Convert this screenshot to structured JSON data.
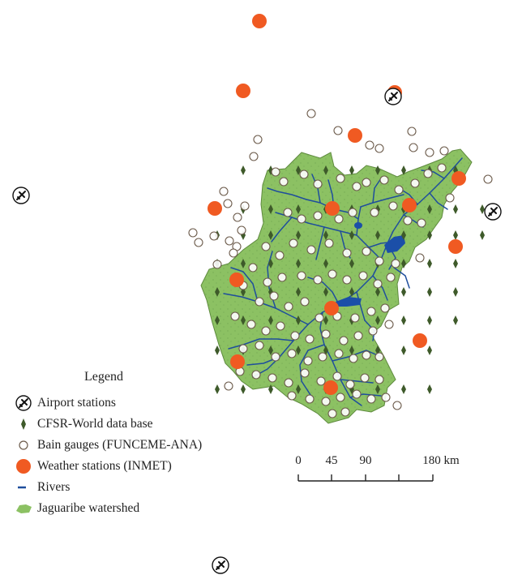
{
  "legend": {
    "title": "Legend",
    "items": [
      {
        "label": "Airport stations",
        "symbol": "airport-icon"
      },
      {
        "label": "CFSR-World data base",
        "symbol": "diamond-icon"
      },
      {
        "label": "Bain gauges (FUNCEME-ANA)",
        "symbol": "open-circle-icon"
      },
      {
        "label": "Weather stations (INMET)",
        "symbol": "filled-circle-icon"
      },
      {
        "label": "Rivers",
        "symbol": "line-icon"
      },
      {
        "label": "Jaguaribe watershed",
        "symbol": "watershed-icon"
      }
    ]
  },
  "scale_bar": {
    "ticks": [
      "0",
      "45",
      "90",
      "180 km"
    ]
  },
  "colors": {
    "watershed_fill": "#8cc163",
    "watershed_stroke": "#5e8a3e",
    "river": "#1f4e9c",
    "reservoir": "#1b4fa8",
    "weather_station": "#f05a22",
    "cfsr_diamond": "#3e5a2a",
    "rain_gauge_stroke": "#6b5a4a",
    "text": "#222222"
  }
}
